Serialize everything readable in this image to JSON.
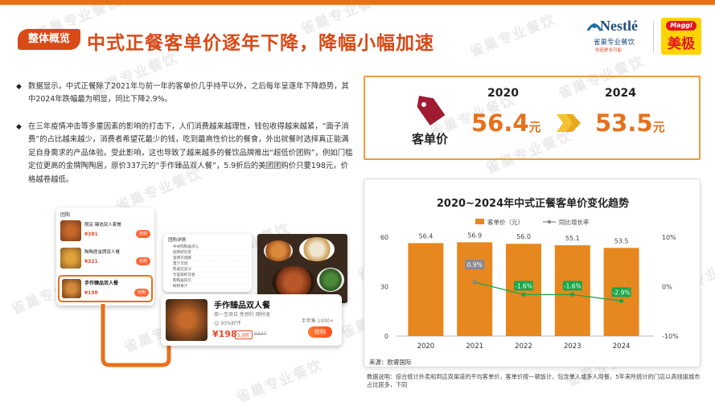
{
  "watermark": "雀巢专业餐饮",
  "header": {
    "tag": "整体概览",
    "title": "中式正餐客单价逐年下降，降幅小幅加速"
  },
  "logos": {
    "nestle_word": "Nestlé",
    "nestle_sub": "雀巢专业餐饮",
    "nestle_tagline": "创造更多可能",
    "maggi_word": "Maggi",
    "maggi_cn": "美极"
  },
  "bullets": [
    "数据显示，中式正餐除了2021年与前一年的客单价几乎持平以外，之后每年呈逐年下降趋势，其中2024年跌幅最为明显，同比下降2.9%。",
    "在三年疫情冲击等多重因素的影响的打击下，人们消费越来越理性，钱包收得越来越紧，“面子消费”的占比越来越少，消费者希望花最少的钱，吃到最高性价比的餐食，外出就餐时选择真正能满足自身需求的产品体验。受此影响，这也导致了越来越多的餐饮品牌推出“超低价团购”，例如门槛定位更高的金牌陶陶居，原价337元的“手作臻品双人餐”，5.9折后的美团团购价只要198元，价格越卷越低。"
  ],
  "kpi": {
    "label": "客单价",
    "year_a": "2020",
    "value_a": "56.4",
    "unit_a": "元",
    "year_b": "2024",
    "value_b": "53.5",
    "unit_b": "元",
    "accent": "#e7711b"
  },
  "phone1": {
    "header": "团购",
    "items": [
      {
        "title": "限定·臻选双人套餐",
        "price": "¥381",
        "btn": "抢购"
      },
      {
        "title": "陶陶居金牌双人餐",
        "price": "¥321",
        "btn": "抢购"
      },
      {
        "title": "手作臻品双人餐",
        "price": "¥198",
        "btn": "抢购"
      }
    ]
  },
  "phone2": {
    "header": "团购详情",
    "rows": [
      "中式陶陶居点心",
      "招牌虾饺皇",
      "金牌叉烧酥",
      "蜜汁叉烧",
      "陈皮红豆沙",
      "竹笙鲜虾云吞",
      "陶陶居凤爪",
      "鲜榨果汁"
    ]
  },
  "deal": {
    "title": "手作臻品双人餐",
    "subtitle": "周一至周日  免预约  随时退",
    "rating": "93%好评",
    "price": "¥198",
    "discount": "5.9折",
    "original": "¥337",
    "sold": "半年售 1000+",
    "btn": "抢购"
  },
  "chart_data": {
    "type": "bar",
    "title": "2020~2024年中式正餐客单价变化趋势",
    "categories": [
      "2020",
      "2021",
      "2022",
      "2023",
      "2024"
    ],
    "series": [
      {
        "name": "客单价（元）",
        "type": "bar",
        "values": [
          56.4,
          56.9,
          56.0,
          55.1,
          53.5
        ],
        "color": "#e7871f"
      },
      {
        "name": "同比增长率",
        "type": "line",
        "axis": "right",
        "values": [
          null,
          0.9,
          -1.6,
          -1.6,
          -2.9
        ],
        "labels": [
          "",
          "0.9%",
          "-1.6%",
          "-1.6%",
          "-2.9%"
        ],
        "color": "#888888",
        "positive_color": "#8a8a8a",
        "negative_color": "#1aa64a"
      }
    ],
    "data_labels": [
      "56.4",
      "56.9",
      "56.0",
      "55.1",
      "53.5"
    ],
    "ylim": [
      0,
      60
    ],
    "yticks": [
      "60",
      "30",
      "0"
    ],
    "y2lim": [
      -10,
      10
    ],
    "y2ticks": [
      "10%",
      "0%",
      "-10%"
    ],
    "legend_position": "top",
    "grid": false,
    "source": "来源：欧睿国际"
  },
  "footnote": "数据说明：综合统计外卖和到店双渠道的平均客单价，客单价按一顿饭计，包含单人或多人用餐，5年来所统计的门店以高线级城市占比居多，下同"
}
